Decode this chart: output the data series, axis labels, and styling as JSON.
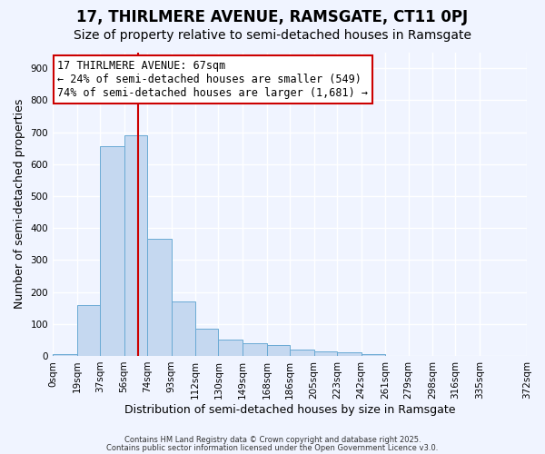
{
  "title": "17, THIRLMERE AVENUE, RAMSGATE, CT11 0PJ",
  "subtitle": "Size of property relative to semi-detached houses in Ramsgate",
  "xlabel": "Distribution of semi-detached houses by size in Ramsgate",
  "ylabel": "Number of semi-detached properties",
  "bar_values": [
    5,
    160,
    655,
    690,
    365,
    170,
    85,
    50,
    40,
    35,
    20,
    15,
    10,
    5,
    0,
    0,
    0,
    0,
    0
  ],
  "bin_edges": [
    0,
    19,
    37,
    56,
    74,
    93,
    112,
    130,
    149,
    168,
    186,
    205,
    223,
    242,
    261,
    279,
    298,
    316,
    335,
    372
  ],
  "tick_labels": [
    "0sqm",
    "19sqm",
    "37sqm",
    "56sqm",
    "74sqm",
    "93sqm",
    "112sqm",
    "130sqm",
    "149sqm",
    "168sqm",
    "186sqm",
    "205sqm",
    "223sqm",
    "242sqm",
    "261sqm",
    "279sqm",
    "298sqm",
    "316sqm",
    "335sqm",
    "372sqm"
  ],
  "bar_color": "#c5d8f0",
  "bar_edge_color": "#6aaad4",
  "bg_color": "#f0f4ff",
  "vline_x": 67,
  "vline_color": "#cc0000",
  "annotation_title": "17 THIRLMERE AVENUE: 67sqm",
  "annotation_line1": "← 24% of semi-detached houses are smaller (549)",
  "annotation_line2": "74% of semi-detached houses are larger (1,681) →",
  "annotation_box_color": "#cc0000",
  "ylim": [
    0,
    950
  ],
  "yticks": [
    0,
    100,
    200,
    300,
    400,
    500,
    600,
    700,
    800,
    900
  ],
  "footer1": "Contains HM Land Registry data © Crown copyright and database right 2025.",
  "footer2": "Contains public sector information licensed under the Open Government Licence v3.0.",
  "title_fontsize": 12,
  "subtitle_fontsize": 10,
  "axis_label_fontsize": 9,
  "tick_fontsize": 7.5,
  "annotation_fontsize": 8.5
}
